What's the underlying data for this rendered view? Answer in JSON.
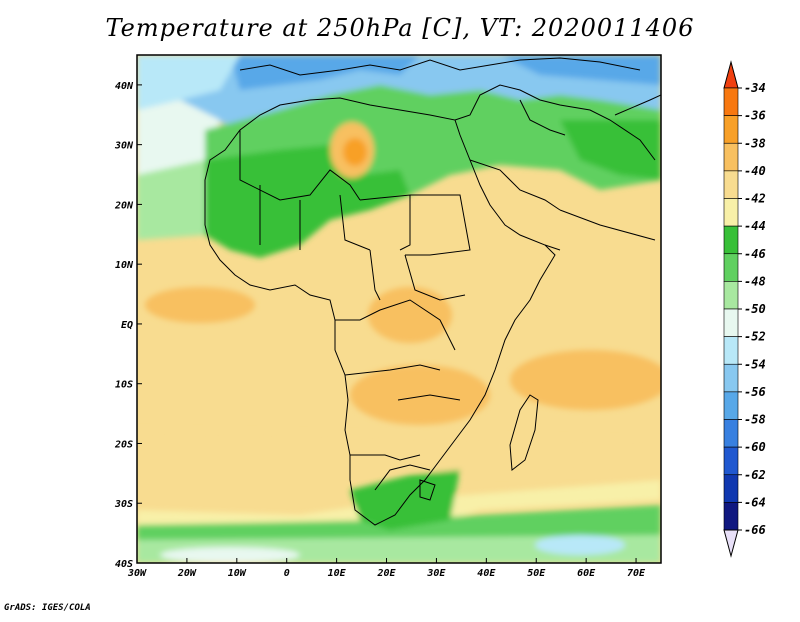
{
  "title": "Temperature at 250hPa [C], VT: 2020011406",
  "credit": "GrADS: IGES/COLA",
  "map": {
    "region": "Africa",
    "lon_range": [
      -30,
      75
    ],
    "lat_range": [
      -40,
      45
    ],
    "lon_labels": [
      "30W",
      "20W",
      "10W",
      "0",
      "10E",
      "20E",
      "30E",
      "40E",
      "50E",
      "60E",
      "70E"
    ],
    "lat_labels": [
      "40N",
      "30N",
      "20N",
      "10N",
      "EQ",
      "10S",
      "20S",
      "30S",
      "40S"
    ]
  },
  "legend": {
    "labels": [
      "-34",
      "-36",
      "-38",
      "-40",
      "-42",
      "-44",
      "-46",
      "-48",
      "-50",
      "-52",
      "-54",
      "-56",
      "-58",
      "-60",
      "-62",
      "-64",
      "-66"
    ],
    "colors": [
      "#f04010",
      "#f87810",
      "#f8a028",
      "#f8c060",
      "#f8dc90",
      "#f8f0a8",
      "#38c038",
      "#60d060",
      "#a8e8a0",
      "#e8f8f0",
      "#b8e8f8",
      "#88c8f0",
      "#58a8e8",
      "#3880e0",
      "#2058d0",
      "#1038b0",
      "#101880",
      "#c8c8f8"
    ],
    "upper_arrow_color": "#f04010",
    "lower_arrow_color": "#e8e0f8"
  },
  "colors": {
    "land_border": "#000000",
    "background": "#ffffff"
  }
}
